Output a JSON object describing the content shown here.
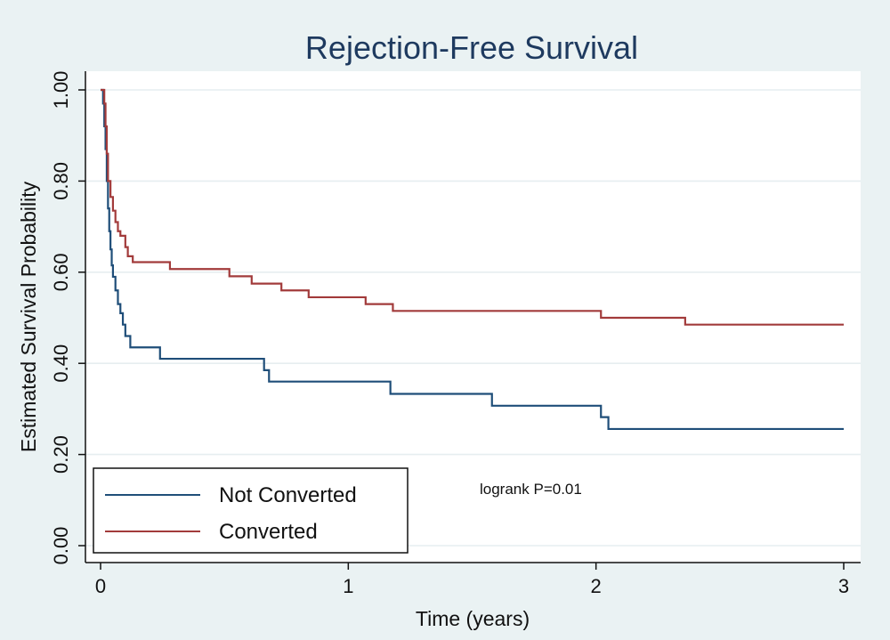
{
  "chart_data": {
    "type": "line",
    "title": "Rejection-Free Survival",
    "xlabel": "Time (years)",
    "ylabel": "Estimated Survival Probability",
    "xlim": [
      0,
      3
    ],
    "ylim": [
      0,
      1
    ],
    "x_ticks": [
      "0",
      "1",
      "2",
      "3"
    ],
    "y_ticks": [
      "0.00",
      "0.20",
      "0.40",
      "0.60",
      "0.80",
      "1.00"
    ],
    "grid": true,
    "legend_position": "bottom-left",
    "annotation": "logrank P=0.01",
    "series": [
      {
        "name": "Not Converted",
        "color": "#1f4e79",
        "step": true,
        "x": [
          0,
          0.01,
          0.015,
          0.02,
          0.025,
          0.03,
          0.035,
          0.04,
          0.045,
          0.05,
          0.06,
          0.07,
          0.08,
          0.09,
          0.1,
          0.12,
          0.24,
          0.66,
          0.68,
          1.17,
          1.58,
          2.02,
          2.05,
          3.0
        ],
        "y": [
          1.0,
          0.97,
          0.92,
          0.87,
          0.8,
          0.74,
          0.69,
          0.65,
          0.615,
          0.59,
          0.56,
          0.53,
          0.51,
          0.485,
          0.46,
          0.435,
          0.41,
          0.385,
          0.36,
          0.333,
          0.307,
          0.282,
          0.256,
          0.256
        ]
      },
      {
        "name": "Converted",
        "color": "#a23b3b",
        "step": true,
        "x": [
          0,
          0.015,
          0.02,
          0.025,
          0.03,
          0.04,
          0.05,
          0.06,
          0.07,
          0.08,
          0.1,
          0.11,
          0.13,
          0.28,
          0.52,
          0.61,
          0.73,
          0.84,
          1.07,
          1.18,
          2.02,
          2.36,
          3.0
        ],
        "y": [
          1.0,
          0.97,
          0.92,
          0.86,
          0.8,
          0.765,
          0.735,
          0.71,
          0.69,
          0.68,
          0.655,
          0.635,
          0.622,
          0.607,
          0.591,
          0.575,
          0.56,
          0.545,
          0.53,
          0.515,
          0.5,
          0.485,
          0.485
        ]
      }
    ]
  }
}
